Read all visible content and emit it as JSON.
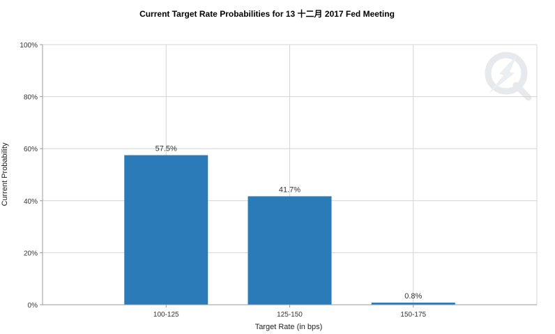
{
  "chart_data": {
    "type": "bar",
    "title": "Current Target Rate Probabilities for 13 十二月 2017  Fed Meeting",
    "xlabel": "Target Rate (in bps)",
    "ylabel": "Current Probability",
    "categories": [
      "100-125",
      "125-150",
      "150-175"
    ],
    "values": [
      57.5,
      41.7,
      0.8
    ],
    "data_labels": [
      "57.5%",
      "41.7%",
      "0.8%"
    ],
    "ylim": [
      0,
      100
    ],
    "yticks": [
      0,
      20,
      40,
      60,
      80,
      100
    ],
    "ytick_labels": [
      "0%",
      "20%",
      "40%",
      "60%",
      "80%",
      "100%"
    ],
    "grid": true,
    "bar_color": "#2b7bb9",
    "grid_color": "#d4d4d4",
    "axis_color": "#999999",
    "watermark": "Q-logo"
  }
}
